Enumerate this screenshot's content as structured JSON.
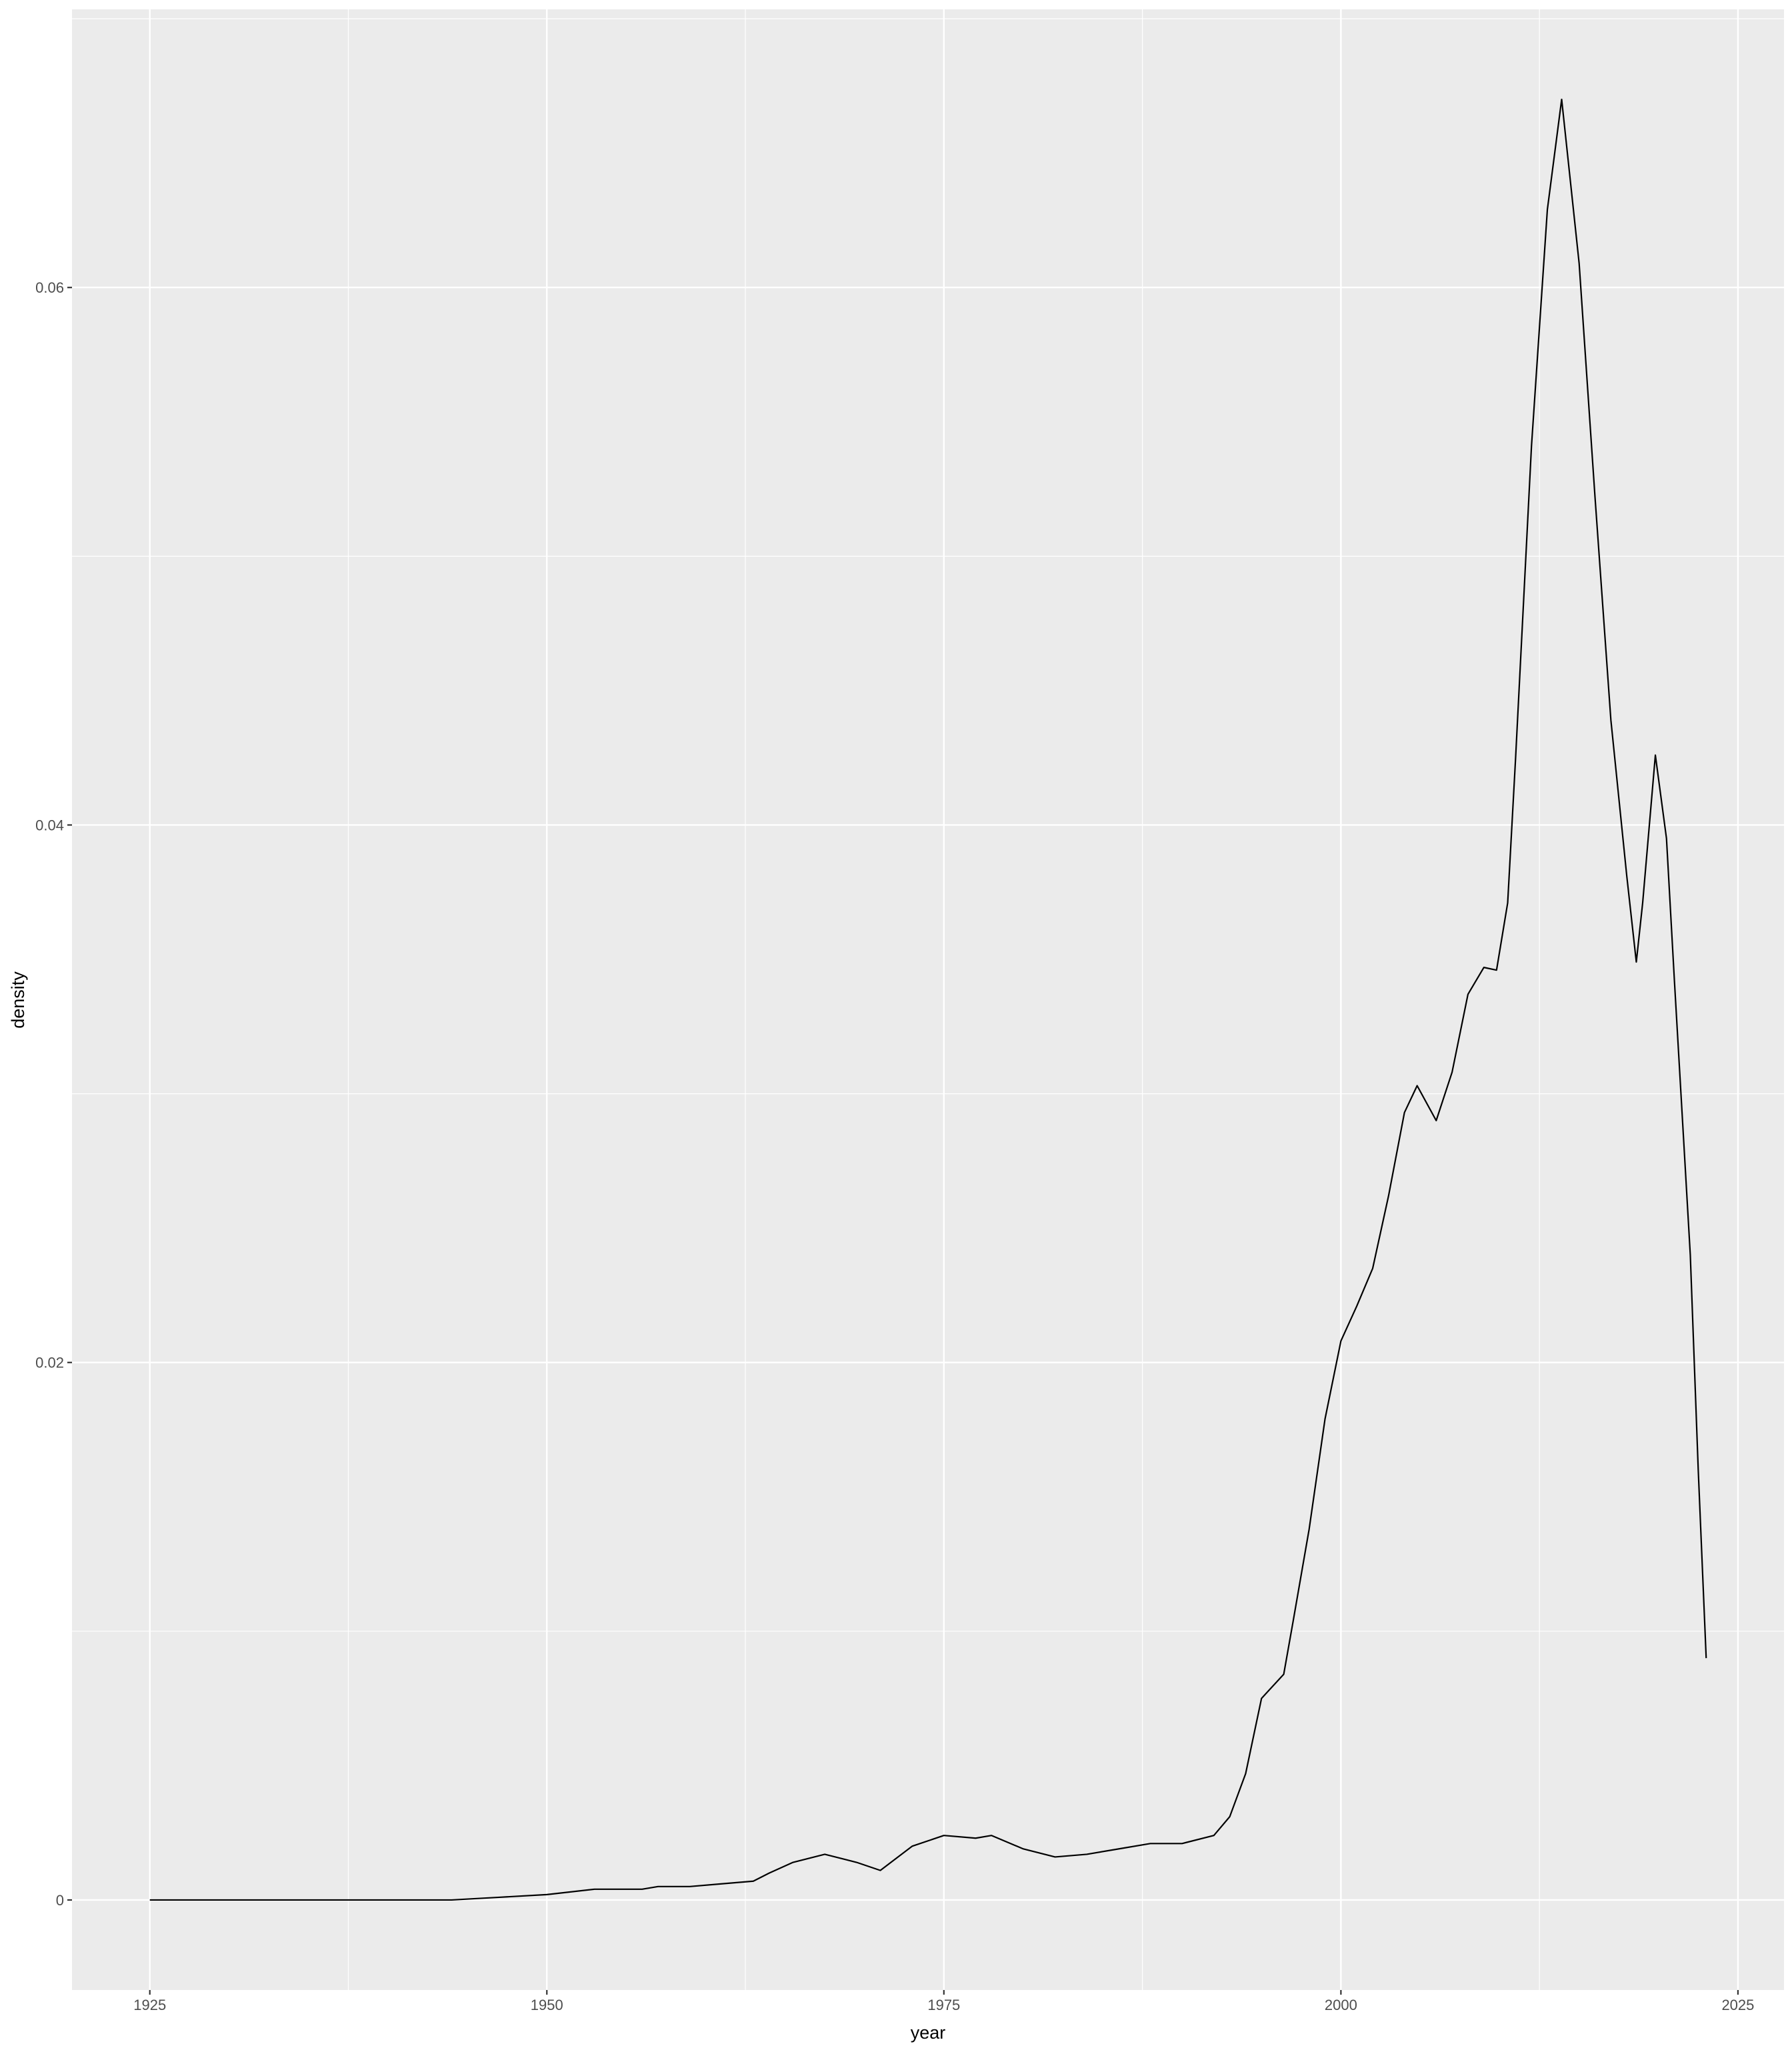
{
  "chart_data": {
    "type": "line",
    "x_label": "year",
    "y_label": "density",
    "x": [
      1925,
      1944,
      1947,
      1950,
      1953,
      1956,
      1957,
      1959,
      1961,
      1963,
      1964,
      1965.5,
      1967.5,
      1969.5,
      1971,
      1973,
      1975,
      1977,
      1978,
      1980,
      1982,
      1984,
      1986,
      1988,
      1990,
      1992,
      1993,
      1994,
      1995,
      1996.4,
      1997,
      1998,
      1999,
      2000,
      2001,
      2002,
      2003,
      2004,
      2004.8,
      2006,
      2007,
      2008,
      2009,
      2009.8,
      2010.5,
      2011,
      2012,
      2013,
      2013.9,
      2015,
      2016,
      2017,
      2018,
      2018.6,
      2019,
      2019.8,
      2020.5,
      2021,
      2022,
      2022.5,
      2023
    ],
    "series": [
      {
        "color": "#000000",
        "values": [
          0,
          0,
          0.0001,
          0.0002,
          0.0004,
          0.0004,
          0.0005,
          0.0005,
          0.0006,
          0.0007,
          0.001,
          0.0014,
          0.0017,
          0.0014,
          0.0011,
          0.002,
          0.0024,
          0.0023,
          0.0024,
          0.0019,
          0.0016,
          0.0017,
          0.0019,
          0.0021,
          0.0021,
          0.0024,
          0.0031,
          0.0047,
          0.0075,
          0.0084,
          0.0104,
          0.0138,
          0.0179,
          0.0208,
          0.0221,
          0.0235,
          0.0262,
          0.0293,
          0.0303,
          0.029,
          0.0308,
          0.0337,
          0.0347,
          0.0346,
          0.0371,
          0.0425,
          0.0541,
          0.0629,
          0.067,
          0.0609,
          0.0522,
          0.0439,
          0.0381,
          0.0349,
          0.0371,
          0.0426,
          0.0395,
          0.0342,
          0.024,
          0.016,
          0.009
        ]
      }
    ],
    "xlim": [
      1920.1,
      2027.9
    ],
    "xticks": [
      1925,
      1950,
      1975,
      2000,
      2025
    ],
    "ylim": [
      -0.00335,
      0.07035
    ],
    "yticks": [
      0,
      {
        "value": 0.02,
        "label": "0.02"
      },
      {
        "value": 0.04,
        "label": "0.04"
      },
      {
        "value": 0.06,
        "label": "0.06"
      }
    ],
    "grid": true
  }
}
